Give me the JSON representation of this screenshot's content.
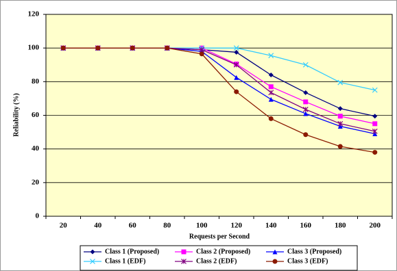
{
  "chart_data": {
    "type": "line",
    "y_label": "Reliability (%)",
    "x_label": "Requests per Second",
    "categories": [
      20,
      40,
      60,
      80,
      100,
      120,
      140,
      160,
      180,
      200
    ],
    "series": [
      {
        "name": "Class 1 (Proposed)",
        "color": "#000080",
        "marker": "diamond",
        "values": [
          100,
          100,
          100,
          100,
          99,
          97.5,
          84,
          73.5,
          64,
          59.5
        ]
      },
      {
        "name": "Class 2 (Proposed)",
        "color": "#ff00ff",
        "marker": "square",
        "values": [
          100,
          100,
          100,
          100,
          100,
          90.5,
          77,
          68,
          59.5,
          55
        ]
      },
      {
        "name": "Class 3 (Proposed)",
        "color": "#0000ff",
        "marker": "triangle",
        "values": [
          100,
          100,
          100,
          100,
          98,
          82.5,
          69.5,
          61,
          53.5,
          49
        ]
      },
      {
        "name": "Class 1 (EDF)",
        "color": "#33ccff",
        "marker": "x",
        "values": [
          100,
          100,
          100,
          100,
          100,
          100,
          95.5,
          90,
          79.5,
          75
        ]
      },
      {
        "name": "Class 2 (EDF)",
        "color": "#800080",
        "marker": "star",
        "values": [
          100,
          100,
          100,
          100,
          99,
          90,
          73.5,
          63.5,
          55,
          50.5
        ]
      },
      {
        "name": "Class 3 (EDF)",
        "color": "#8b1a00",
        "marker": "circle",
        "values": [
          100,
          100,
          100,
          100,
          96.5,
          74,
          58,
          48.5,
          41.5,
          38
        ]
      }
    ],
    "ylim": [
      0,
      120
    ],
    "yticks": [
      0,
      20,
      40,
      60,
      80,
      100,
      120
    ],
    "grid": true,
    "plot_background": "#ffffcc",
    "legend": "bottom"
  }
}
